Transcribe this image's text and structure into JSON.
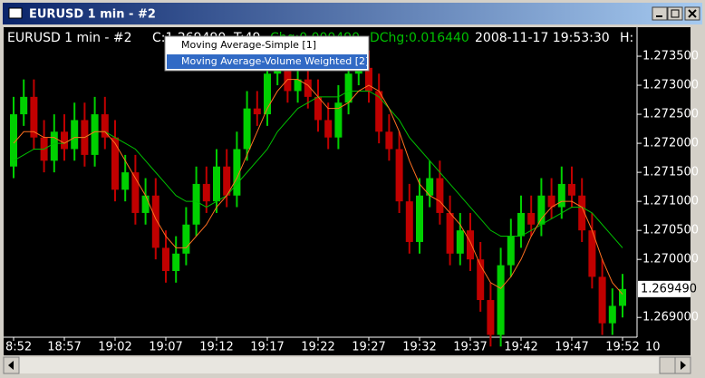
{
  "window": {
    "title": "EURUSD  1 min  - #2"
  },
  "header": {
    "symbol": "EURUSD  1 min  - #2",
    "close": "C:1.269490",
    "ticks": "T:49",
    "chg": "Chg:0.000490",
    "dchg": "DChg:0.016440",
    "datetime": "2008-11-17  19:53:30",
    "high": "H:"
  },
  "menu": {
    "items": [
      "Moving Average-Simple [1]",
      "Moving Average-Volume Weighted [2]"
    ]
  },
  "chart_data": {
    "type": "candlestick",
    "categories": [
      "8:52",
      null,
      null,
      null,
      null,
      "18:57",
      null,
      null,
      null,
      null,
      "19:02",
      null,
      null,
      null,
      null,
      "19:07",
      null,
      null,
      null,
      null,
      "19:12",
      null,
      null,
      null,
      null,
      "19:17",
      null,
      null,
      null,
      null,
      "19:22",
      null,
      null,
      null,
      null,
      "19:27",
      null,
      null,
      null,
      null,
      "19:32",
      null,
      null,
      null,
      null,
      "19:37",
      null,
      null,
      null,
      null,
      "19:42",
      null,
      null,
      null,
      null,
      "19:47",
      null,
      null,
      null,
      null,
      "19:52"
    ],
    "corner_label": "10",
    "open": [
      1.2716,
      1.2725,
      1.2728,
      1.2721,
      1.2717,
      1.2722,
      1.2719,
      1.2724,
      1.2718,
      1.2725,
      1.2721,
      1.2712,
      1.2715,
      1.2708,
      1.2711,
      1.2702,
      1.2698,
      1.2701,
      1.2706,
      1.2713,
      1.271,
      1.2716,
      1.2711,
      1.2719,
      1.2726,
      1.2725,
      1.2732,
      1.2737,
      1.2729,
      1.2731,
      1.2728,
      1.2724,
      1.2721,
      1.2727,
      1.2732,
      1.2733,
      1.2729,
      1.2722,
      1.2719,
      1.271,
      1.2703,
      1.2711,
      1.2714,
      1.2708,
      1.2701,
      1.2705,
      1.27,
      1.2693,
      1.2687,
      1.2699,
      1.2704,
      1.2708,
      1.2706,
      1.2711,
      1.2709,
      1.2713,
      1.2711,
      1.2705,
      1.2697,
      1.2689,
      1.2692
    ],
    "high": [
      1.2728,
      1.2731,
      1.2731,
      1.2724,
      1.2725,
      1.2725,
      1.2727,
      1.2727,
      1.2728,
      1.2728,
      1.2724,
      1.2718,
      1.2718,
      1.2714,
      1.2714,
      1.2705,
      1.2704,
      1.2709,
      1.2716,
      1.2716,
      1.2719,
      1.2719,
      1.2722,
      1.2729,
      1.2729,
      1.2735,
      1.2738,
      1.2738,
      1.2734,
      1.2734,
      1.2731,
      1.2727,
      1.273,
      1.2735,
      1.2736,
      1.2736,
      1.2732,
      1.2725,
      1.2722,
      1.2713,
      1.2714,
      1.2717,
      1.2717,
      1.2711,
      1.2708,
      1.2708,
      1.2703,
      1.2696,
      1.2702,
      1.2707,
      1.2711,
      1.2711,
      1.2714,
      1.2714,
      1.2716,
      1.2716,
      1.2714,
      1.2708,
      1.27,
      1.2695,
      1.26975
    ],
    "low": [
      1.2714,
      1.2723,
      1.2719,
      1.2715,
      1.2715,
      1.2717,
      1.2717,
      1.2716,
      1.2716,
      1.2719,
      1.271,
      1.271,
      1.2706,
      1.2706,
      1.27,
      1.2696,
      1.2696,
      1.2699,
      1.2704,
      1.2708,
      1.2708,
      1.2709,
      1.2709,
      1.2717,
      1.2723,
      1.2723,
      1.273,
      1.2727,
      1.2727,
      1.2726,
      1.2722,
      1.2719,
      1.2719,
      1.2725,
      1.273,
      1.2727,
      1.272,
      1.2717,
      1.2708,
      1.2701,
      1.2701,
      1.2709,
      1.2706,
      1.2699,
      1.2699,
      1.2698,
      1.2691,
      1.2685,
      1.2685,
      1.2697,
      1.2702,
      1.2704,
      1.2704,
      1.2707,
      1.2707,
      1.2709,
      1.2703,
      1.2695,
      1.2687,
      1.2687,
      1.269
    ],
    "close": [
      1.2725,
      1.2728,
      1.2721,
      1.2717,
      1.2722,
      1.2719,
      1.2724,
      1.2718,
      1.2725,
      1.2721,
      1.2712,
      1.2715,
      1.2708,
      1.2711,
      1.2702,
      1.2698,
      1.2701,
      1.2706,
      1.2713,
      1.271,
      1.2716,
      1.2711,
      1.2719,
      1.2726,
      1.2725,
      1.2732,
      1.2737,
      1.2729,
      1.2731,
      1.2728,
      1.2724,
      1.2721,
      1.2727,
      1.2732,
      1.2733,
      1.2729,
      1.2722,
      1.2719,
      1.271,
      1.2703,
      1.2711,
      1.2714,
      1.2708,
      1.2701,
      1.2705,
      1.27,
      1.2693,
      1.2687,
      1.2699,
      1.2704,
      1.2708,
      1.2706,
      1.2711,
      1.2709,
      1.2713,
      1.2711,
      1.2705,
      1.2697,
      1.2689,
      1.2692,
      1.26949
    ],
    "up_color": "#00d000",
    "down_color": "#c00000",
    "lines": [
      {
        "color": "#00c000",
        "values": [
          1.2717,
          1.2718,
          1.2719,
          1.2719,
          1.272,
          1.272,
          1.2721,
          1.2721,
          1.2722,
          1.2722,
          1.2721,
          1.272,
          1.2719,
          1.2717,
          1.2715,
          1.2713,
          1.2711,
          1.271,
          1.271,
          1.2709,
          1.271,
          1.2711,
          1.2713,
          1.2715,
          1.2717,
          1.2719,
          1.2722,
          1.2724,
          1.2726,
          1.2727,
          1.2728,
          1.2728,
          1.2728,
          1.2729,
          1.2729,
          1.2729,
          1.2728,
          1.2726,
          1.2724,
          1.2721,
          1.2719,
          1.2717,
          1.2715,
          1.2713,
          1.2711,
          1.2709,
          1.2707,
          1.2705,
          1.2704,
          1.2704,
          1.2704,
          1.2705,
          1.2706,
          1.2707,
          1.2708,
          1.2709,
          1.2709,
          1.2708,
          1.2706,
          1.2704,
          1.2702
        ]
      },
      {
        "color": "#ff7020",
        "values": [
          1.272,
          1.2722,
          1.2722,
          1.2721,
          1.2721,
          1.272,
          1.2721,
          1.2721,
          1.2722,
          1.2722,
          1.272,
          1.2717,
          1.2714,
          1.2711,
          1.2707,
          1.2704,
          1.2702,
          1.2702,
          1.2704,
          1.2706,
          1.2709,
          1.2711,
          1.2714,
          1.2718,
          1.2722,
          1.2726,
          1.2729,
          1.2731,
          1.2731,
          1.273,
          1.2728,
          1.2726,
          1.2726,
          1.2727,
          1.2729,
          1.273,
          1.2729,
          1.2726,
          1.2722,
          1.2717,
          1.2713,
          1.2711,
          1.271,
          1.2708,
          1.2706,
          1.2703,
          1.2699,
          1.2696,
          1.2695,
          1.2697,
          1.27,
          1.2704,
          1.2707,
          1.2709,
          1.271,
          1.271,
          1.2709,
          1.2705,
          1.27,
          1.2696,
          1.2694
        ]
      }
    ],
    "ylim": [
      1.26866,
      1.274
    ],
    "yticks": [
      {
        "value": 1.2735,
        "label": "1.273500"
      },
      {
        "value": 1.273,
        "label": "1.273000"
      },
      {
        "value": 1.2725,
        "label": "1.272500"
      },
      {
        "value": 1.272,
        "label": "1.272000"
      },
      {
        "value": 1.2715,
        "label": "1.271500"
      },
      {
        "value": 1.271,
        "label": "1.271000"
      },
      {
        "value": 1.2705,
        "label": "1.270500"
      },
      {
        "value": 1.27,
        "label": "1.270000"
      },
      {
        "value": 1.269,
        "label": "1.269000"
      }
    ],
    "current_price": {
      "value": 1.26949,
      "label": "1.269490"
    }
  }
}
